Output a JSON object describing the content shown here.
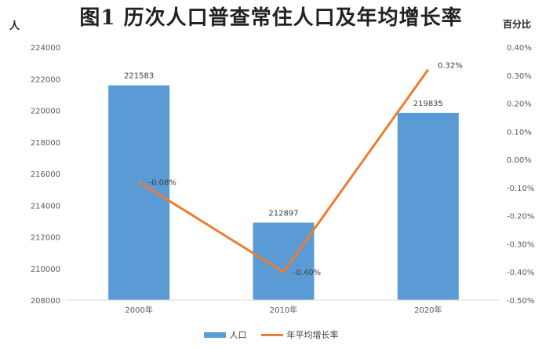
{
  "chart_data": {
    "type": "bar",
    "title": "图1 历次人口普查常住人口及年均增长率",
    "ylabel": "人",
    "y2label": "百分比",
    "categories": [
      "2000年",
      "2010年",
      "2020年"
    ],
    "series": [
      {
        "name": "人口",
        "type": "bar",
        "axis": "left",
        "values": [
          221583,
          212897,
          219835
        ],
        "labels": [
          "221583",
          "212897",
          "219835"
        ]
      },
      {
        "name": "年平均增长率",
        "type": "line",
        "axis": "right",
        "values": [
          -0.08,
          -0.4,
          0.32
        ],
        "labels": [
          "-0.08%",
          "-0.40%",
          "0.32%"
        ]
      }
    ],
    "ylim": [
      208000,
      224000
    ],
    "yticks": [
      208000,
      210000,
      212000,
      214000,
      216000,
      218000,
      220000,
      222000,
      224000
    ],
    "y2lim": [
      -0.5,
      0.4
    ],
    "y2ticks": [
      "-0.50%",
      "-0.40%",
      "-0.30%",
      "-0.20%",
      "-0.10%",
      "0.00%",
      "0.10%",
      "0.20%",
      "0.30%",
      "0.40%"
    ],
    "y2tick_values": [
      -0.5,
      -0.4,
      -0.3,
      -0.2,
      -0.1,
      0.0,
      0.1,
      0.2,
      0.3,
      0.4
    ],
    "grid": false,
    "legend_position": "bottom",
    "colors": {
      "bar": "#5b9bd5",
      "line": "#ed7d31",
      "axis": "#d9d9d9"
    }
  }
}
